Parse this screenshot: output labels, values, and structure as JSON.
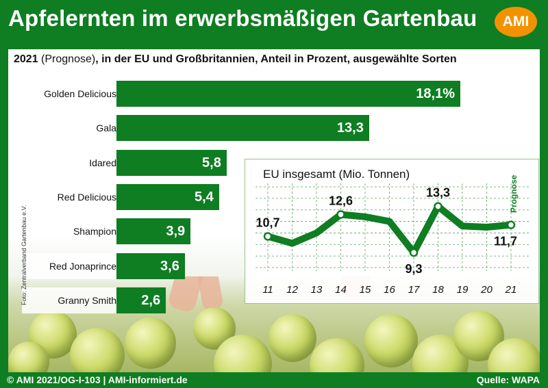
{
  "header": {
    "title": "Apfelernten im erwerbsmäßigen Gartenbau",
    "logo": "AMI"
  },
  "subtitle": {
    "year": "2021",
    "rest": " (Prognose)",
    "bold_rest": ", in der EU und Großbritannien, Anteil in Prozent, ausgewählte Sorten"
  },
  "photo_credit": "Foto: Zentralverband Gartenbau e.V.",
  "footer": {
    "left": "© AMI 2021/OG-I-103 | AMI-informiert.de",
    "right": "Quelle: WAPA"
  },
  "colors": {
    "bar": "#0f7d22",
    "line": "#0f7d22",
    "accent": "#f39200"
  },
  "chart_data": [
    {
      "type": "bar",
      "orientation": "horizontal",
      "title": "2021 (Prognose), in der EU und Großbritannien, Anteil in Prozent, ausgewählte Sorten",
      "categories": [
        "Golden Delicious",
        "Gala",
        "Idared",
        "Red Delicious",
        "Shampion",
        "Red Jonaprince",
        "Granny Smith"
      ],
      "values": [
        18.1,
        13.3,
        5.8,
        5.4,
        3.9,
        3.6,
        2.6
      ],
      "value_labels": [
        "18,1%",
        "13,3",
        "5,8",
        "5,4",
        "3,9",
        "3,6",
        "2,6"
      ],
      "xlim": [
        0,
        18.1
      ]
    },
    {
      "type": "line",
      "title": "EU insgesamt (Mio. Tonnen)",
      "categories": [
        "11",
        "12",
        "13",
        "14",
        "15",
        "16",
        "17",
        "18",
        "19",
        "20",
        "21"
      ],
      "values": [
        10.7,
        10.1,
        11.0,
        12.6,
        12.4,
        12.0,
        9.3,
        13.3,
        11.6,
        11.5,
        11.7
      ],
      "labeled_points": [
        {
          "index": 0,
          "label": "10,7"
        },
        {
          "index": 3,
          "label": "12,6"
        },
        {
          "index": 6,
          "label": "9,3"
        },
        {
          "index": 7,
          "label": "13,3"
        },
        {
          "index": 10,
          "label": "11,7"
        }
      ],
      "annotation": "Prognose",
      "ylim": [
        8,
        15
      ],
      "grid": true
    }
  ]
}
